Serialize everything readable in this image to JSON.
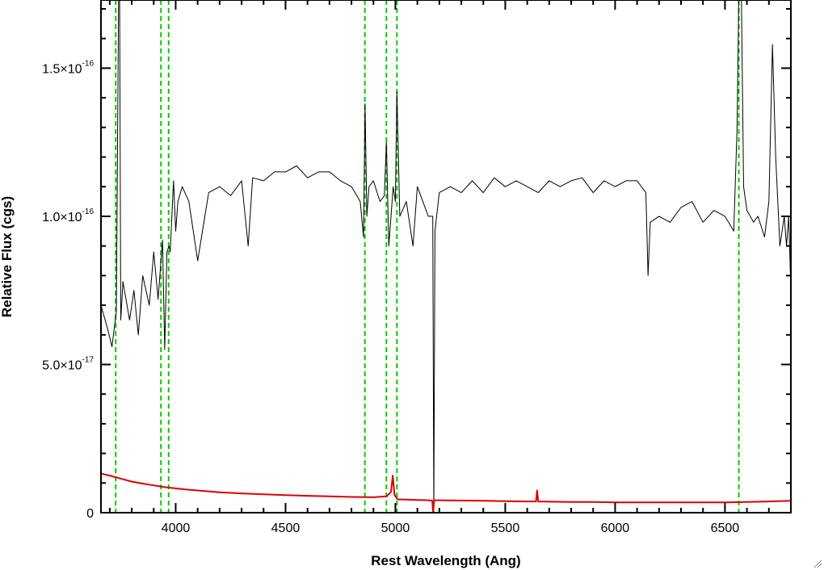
{
  "chart_data": {
    "type": "line",
    "xlabel": "Rest Wavelength (Ang)",
    "ylabel": "Relative Flux (cgs)",
    "xlim": [
      3660,
      6800
    ],
    "ylim": [
      0,
      1.73e-16
    ],
    "x_ticks": [
      {
        "value": 4000,
        "label": "4000"
      },
      {
        "value": 4500,
        "label": "4500"
      },
      {
        "value": 5000,
        "label": "5000"
      },
      {
        "value": 5500,
        "label": "5500"
      },
      {
        "value": 6000,
        "label": "6000"
      },
      {
        "value": 6500,
        "label": "6500"
      }
    ],
    "y_ticks": [
      {
        "value": 0,
        "mantissa": "0",
        "exponent": ""
      },
      {
        "value": 5e-17,
        "mantissa": "5.0×10",
        "exponent": "-17"
      },
      {
        "value": 1e-16,
        "mantissa": "1.0×10",
        "exponent": "-16"
      },
      {
        "value": 1.5e-16,
        "mantissa": "1.5×10",
        "exponent": "-16"
      }
    ],
    "series": [
      {
        "color": "#000000",
        "style": "solid",
        "x": [
          3660,
          3690,
          3710,
          3730,
          3740,
          3745,
          3750,
          3760,
          3790,
          3810,
          3830,
          3850,
          3880,
          3900,
          3920,
          3940,
          3950,
          3960,
          3970,
          3975,
          3990,
          4000,
          4010,
          4030,
          4060,
          4100,
          4150,
          4200,
          4250,
          4300,
          4330,
          4350,
          4400,
          4450,
          4500,
          4550,
          4600,
          4650,
          4700,
          4750,
          4800,
          4840,
          4855,
          4862,
          4870,
          4880,
          4900,
          4930,
          4950,
          4959,
          4970,
          4990,
          5000,
          5007,
          5020,
          5050,
          5080,
          5100,
          5150,
          5170,
          5175,
          5180,
          5200,
          5250,
          5300,
          5350,
          5400,
          5450,
          5500,
          5550,
          5600,
          5650,
          5700,
          5750,
          5800,
          5850,
          5900,
          5950,
          6000,
          6050,
          6100,
          6140,
          6150,
          6160,
          6200,
          6250,
          6300,
          6350,
          6400,
          6450,
          6500,
          6540,
          6555,
          6563,
          6575,
          6585,
          6600,
          6630,
          6650,
          6680,
          6700,
          6716,
          6731,
          6750,
          6770,
          6780,
          6790,
          6800
        ],
        "y": [
          7e-17,
          6.2e-17,
          5.6e-17,
          6.8e-17,
          1.73e-16,
          1.73e-16,
          6.5e-17,
          7.8e-17,
          6.5e-17,
          7.5e-17,
          6e-17,
          8e-17,
          7e-17,
          8.8e-17,
          7.2e-17,
          9.2e-17,
          5.5e-17,
          8.8e-17,
          9e-17,
          8.8e-17,
          1.12e-16,
          9.5e-17,
          1.05e-16,
          1.1e-16,
          1.05e-16,
          8.5e-17,
          1.08e-16,
          1.1e-16,
          1.07e-16,
          1.12e-16,
          9e-17,
          1.13e-16,
          1.12e-16,
          1.15e-16,
          1.15e-16,
          1.17e-16,
          1.13e-16,
          1.15e-16,
          1.15e-16,
          1.12e-16,
          1.1e-16,
          1.05e-16,
          9.3e-17,
          1.38e-16,
          1e-16,
          1.1e-16,
          1.12e-16,
          1.05e-16,
          1.07e-16,
          1.25e-16,
          9e-17,
          1.1e-16,
          1.05e-16,
          1.42e-16,
          1e-16,
          1.05e-16,
          9e-17,
          1.1e-16,
          1e-16,
          1e-16,
          0.0,
          9.5e-17,
          1.08e-16,
          1.1e-16,
          1.08e-16,
          1.12e-16,
          1.08e-16,
          1.13e-16,
          1.1e-16,
          1.12e-16,
          1.1e-16,
          1.08e-16,
          1.12e-16,
          1.1e-16,
          1.12e-16,
          1.13e-16,
          1.08e-16,
          1.12e-16,
          1.1e-16,
          1.12e-16,
          1.12e-16,
          1.08e-16,
          8e-17,
          9.8e-17,
          1e-16,
          9.8e-17,
          1.03e-16,
          1.05e-16,
          9.8e-17,
          1.02e-16,
          1e-16,
          9.5e-17,
          1.3e-16,
          1.73e-16,
          1.73e-16,
          1.1e-16,
          1.02e-16,
          9.8e-17,
          1e-16,
          9.3e-17,
          1.05e-16,
          1.58e-16,
          1.2e-16,
          9e-17,
          1e-16,
          9e-17,
          1e-16,
          7.5e-17
        ]
      },
      {
        "color": "#dd0000",
        "style": "solid",
        "x": [
          3660,
          3700,
          3750,
          3800,
          3850,
          3900,
          3950,
          4000,
          4050,
          4100,
          4150,
          4200,
          4300,
          4400,
          4500,
          4600,
          4700,
          4800,
          4900,
          4960,
          4980,
          4988,
          4996,
          5010,
          5050,
          5100,
          5150,
          5168,
          5172,
          5176,
          5180,
          5200,
          5300,
          5400,
          5500,
          5600,
          5640,
          5645,
          5650,
          5700,
          5800,
          5900,
          6000,
          6100,
          6200,
          6300,
          6400,
          6500,
          6600,
          6700,
          6800
        ],
        "y": [
          1.32e-17,
          1.25e-17,
          1.15e-17,
          1.05e-17,
          9.8e-18,
          9.2e-18,
          8.6e-18,
          8.2e-18,
          7.8e-18,
          7.5e-18,
          7.2e-18,
          6.9e-18,
          6.5e-18,
          6.2e-18,
          5.9e-18,
          5.7e-18,
          5.5e-18,
          5.3e-18,
          5.2e-18,
          5.5e-18,
          7e-18,
          1.25e-17,
          6e-18,
          4.5e-18,
          4.4e-18,
          4.3e-18,
          4.2e-18,
          4e-18,
          0.0,
          4e-18,
          4.2e-18,
          4.2e-18,
          4.1e-18,
          4e-18,
          3.9e-18,
          3.8e-18,
          3.8e-18,
          7.5e-18,
          3.8e-18,
          3.7e-18,
          3.6e-18,
          3.6e-18,
          3.5e-18,
          3.5e-18,
          3.5e-18,
          3.5e-18,
          3.5e-18,
          3.5e-18,
          3.6e-18,
          3.8e-18,
          4e-18
        ]
      }
    ],
    "vertical_lines": {
      "color": "#00cc00",
      "style": "dashed",
      "x": [
        3727,
        3933,
        3968,
        4861,
        4959,
        5007,
        6563
      ]
    },
    "grid": false,
    "legend": "none"
  },
  "window": {
    "resize_grip_icon": "resize-grip-icon"
  }
}
